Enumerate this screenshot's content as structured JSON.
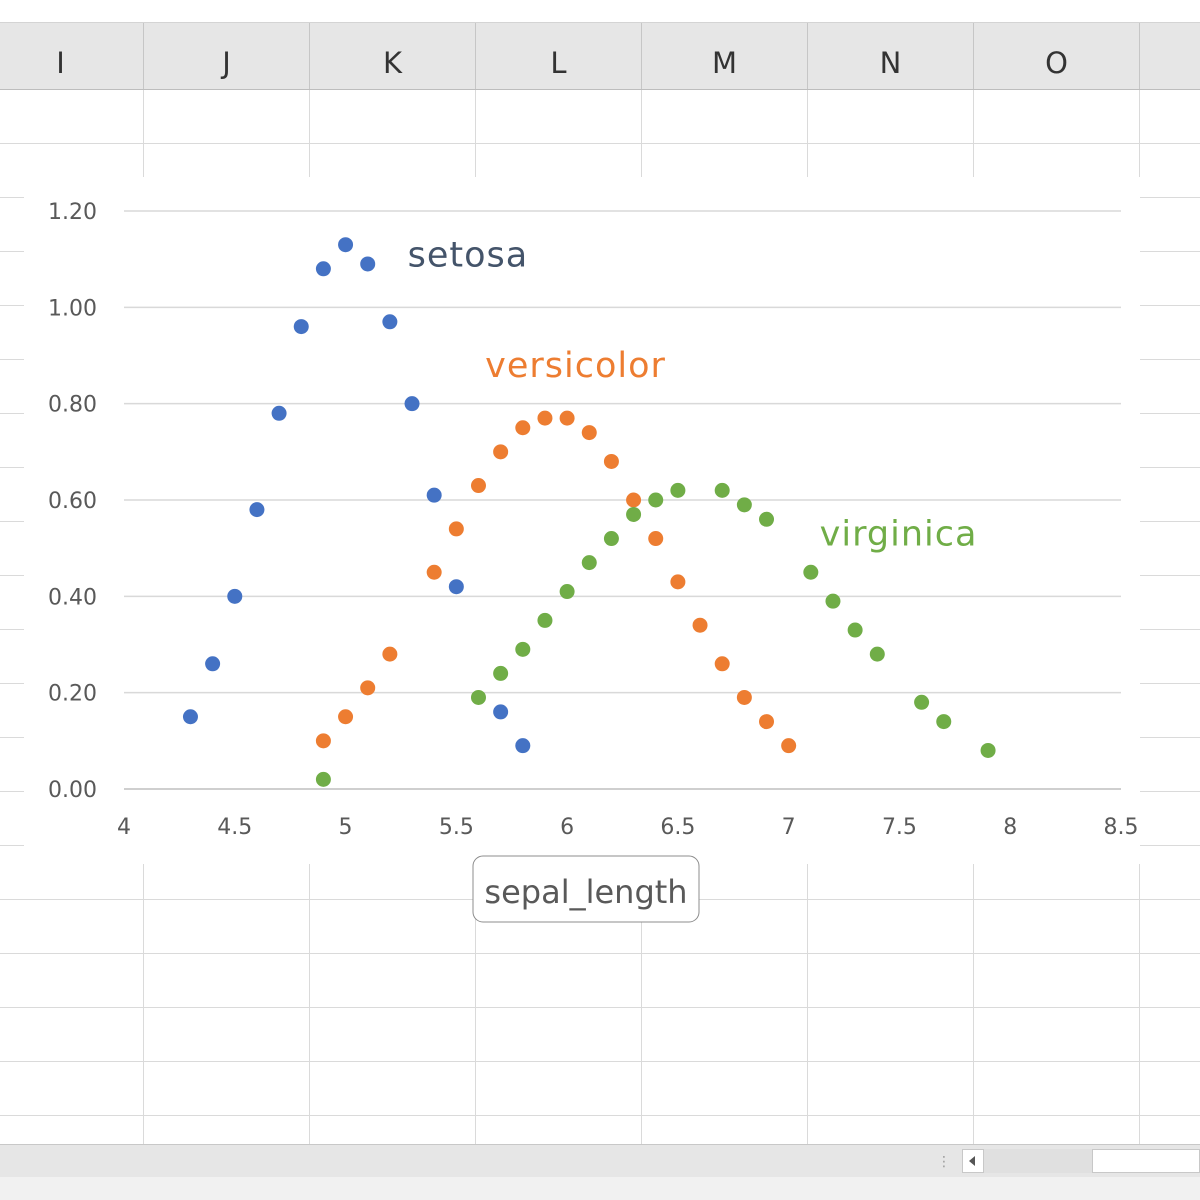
{
  "sheet": {
    "columns": [
      "I",
      "J",
      "K",
      "L",
      "M",
      "N",
      "O"
    ]
  },
  "chart_data": {
    "type": "scatter",
    "title": "",
    "xlabel": "sepal_length",
    "ylabel": "",
    "xlim": [
      4,
      8.5
    ],
    "ylim": [
      0,
      1.2
    ],
    "x_ticks": [
      "4",
      "4.5",
      "5",
      "5.5",
      "6",
      "6.5",
      "7",
      "7.5",
      "8",
      "8.5"
    ],
    "y_ticks": [
      "0.00",
      "0.20",
      "0.40",
      "0.60",
      "0.80",
      "1.00",
      "1.20"
    ],
    "grid": true,
    "series": [
      {
        "name": "setosa",
        "color": "#4472c4",
        "x": [
          4.3,
          4.4,
          4.5,
          4.6,
          4.7,
          4.8,
          4.9,
          5.0,
          5.1,
          5.2,
          5.3,
          5.4,
          5.5,
          5.7,
          5.8
        ],
        "y": [
          0.15,
          0.26,
          0.4,
          0.58,
          0.78,
          0.96,
          1.08,
          1.13,
          1.09,
          0.97,
          0.8,
          0.61,
          0.42,
          0.16,
          0.09
        ]
      },
      {
        "name": "versicolor",
        "color": "#ed7d31",
        "x": [
          4.9,
          5.0,
          5.1,
          5.2,
          5.4,
          5.5,
          5.6,
          5.7,
          5.8,
          5.9,
          6.0,
          6.1,
          6.2,
          6.3,
          6.4,
          6.5,
          6.6,
          6.7,
          6.8,
          6.9,
          7.0
        ],
        "y": [
          0.1,
          0.15,
          0.21,
          0.28,
          0.45,
          0.54,
          0.63,
          0.7,
          0.75,
          0.77,
          0.77,
          0.74,
          0.68,
          0.6,
          0.52,
          0.43,
          0.34,
          0.26,
          0.19,
          0.14,
          0.09
        ]
      },
      {
        "name": "virginica",
        "color": "#70ad47",
        "x": [
          4.9,
          5.6,
          5.7,
          5.8,
          5.9,
          6.0,
          6.1,
          6.2,
          6.3,
          6.4,
          6.5,
          6.7,
          6.8,
          6.9,
          7.1,
          7.2,
          7.3,
          7.4,
          7.6,
          7.7,
          7.9
        ],
        "y": [
          0.02,
          0.19,
          0.24,
          0.29,
          0.35,
          0.41,
          0.47,
          0.52,
          0.57,
          0.6,
          0.62,
          0.62,
          0.59,
          0.56,
          0.45,
          0.39,
          0.33,
          0.28,
          0.18,
          0.14,
          0.08
        ]
      }
    ],
    "annotations": [
      {
        "text": "setosa",
        "color": "#44546a",
        "x": 5.28,
        "y": 1.11
      },
      {
        "text": "versicolor",
        "color": "#ed7d31",
        "x": 5.63,
        "y": 0.88
      },
      {
        "text": "virginica",
        "color": "#70ad47",
        "x": 7.14,
        "y": 0.53
      }
    ]
  }
}
